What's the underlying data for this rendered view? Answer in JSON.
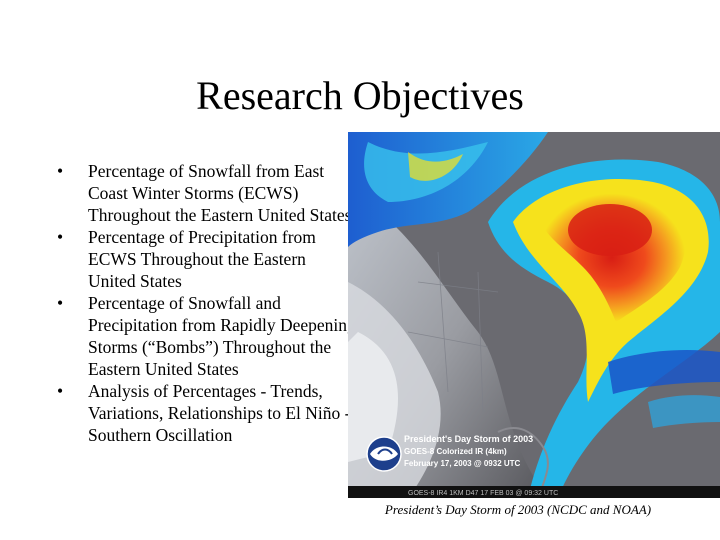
{
  "slide": {
    "title": "Research Objectives",
    "bullets": [
      "Percentage of Snowfall from East Coast Winter Storms (ECWS) Throughout the Eastern United States",
      "Percentage of Precipitation from ECWS Throughout the Eastern United States",
      "Percentage of Snowfall and Precipitation from Rapidly Deepening Storms (“Bombs”) Throughout the Eastern United States",
      "Analysis of Percentages - Trends, Variations, Relationships to El Niño - Southern Oscillation"
    ],
    "bullet_glyph": "•"
  },
  "image": {
    "overlay_line1": "President's Day Storm of 2003",
    "overlay_line2": "GOES-8 Colorized IR (4km)",
    "overlay_line3": "February 17, 2003 @ 0932 UTC",
    "footer_text": "GOES-8 IR4 1KM D47 17 FEB 03 @ 09:32 UTC",
    "icon": "noaa-logo",
    "caption": "President’s Day Storm of 2003 (NCDC and NOAA)",
    "colors": {
      "cold_core": "#e0301e",
      "orange": "#f39a1e",
      "yellow": "#f6e21c",
      "cyan": "#25b6e8",
      "blue": "#1a56c8",
      "land_gray": "#6e6e73"
    }
  }
}
